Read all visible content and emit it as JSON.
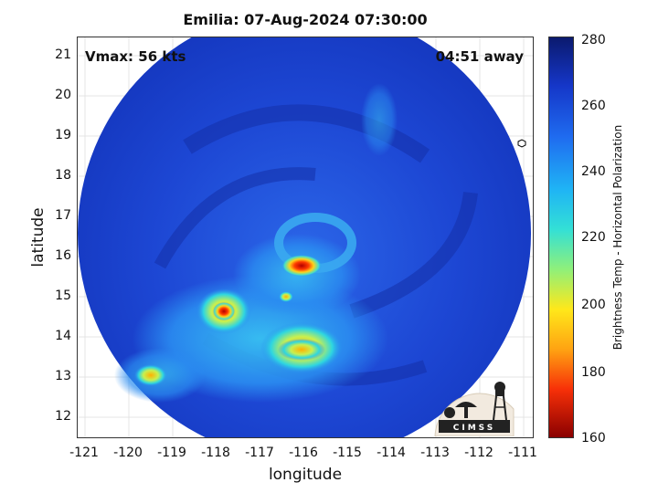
{
  "title": "Emilia: 07-Aug-2024 07:30:00",
  "vmax": "Vmax: 56 kts",
  "time_away": "04:51 away",
  "xaxis": {
    "label": "longitude",
    "ticks": [
      "-121",
      "-120",
      "-119",
      "-118",
      "-117",
      "-116",
      "-115",
      "-114",
      "-113",
      "-112",
      "-111"
    ]
  },
  "yaxis": {
    "label": "latitude",
    "ticks": [
      "21",
      "20",
      "19",
      "18",
      "17",
      "16",
      "15",
      "14",
      "13",
      "12"
    ]
  },
  "colorbar": {
    "label": "Brightness Temp - Horizontal Polarization",
    "ticks": [
      "280",
      "260",
      "240",
      "220",
      "200",
      "180",
      "160"
    ]
  },
  "logo_text": "CIMSS",
  "colors": {
    "background_swath": "#1a3fd6",
    "warm_core": "#ff2a00",
    "outer_band": "#2a8cf0"
  }
}
